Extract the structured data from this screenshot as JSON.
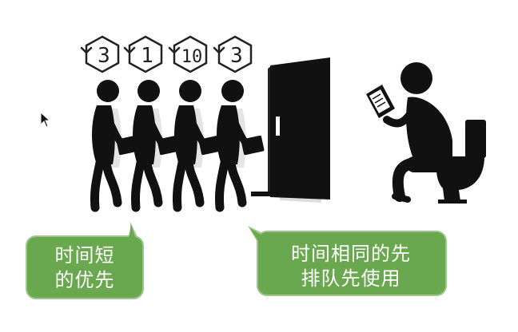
{
  "queue": {
    "badges": [
      "3",
      "1",
      "10",
      "3"
    ]
  },
  "bubbles": {
    "left": {
      "lines": [
        "时间短",
        "的优先"
      ]
    },
    "right": {
      "lines": [
        "时间相同的先",
        "排队先使用"
      ]
    }
  },
  "colors": {
    "figure": "#111111",
    "bubble_fill": "#6aa84f",
    "bubble_border": "#9cc68a",
    "text_on_bubble": "#ffffff",
    "shadow": "#dcdcdc"
  },
  "icons": {
    "badge": "hexagon-countdown-icon",
    "door": "open-door-icon",
    "toilet": "toilet-icon",
    "reader": "person-reading-icon",
    "cursor": "mouse-pointer-icon"
  }
}
